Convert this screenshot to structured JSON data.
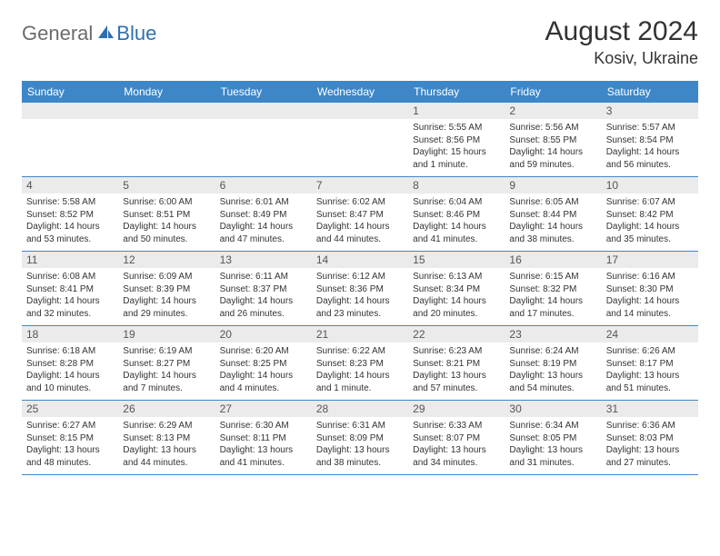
{
  "logo": {
    "text1": "General",
    "text2": "Blue"
  },
  "title": "August 2024",
  "location": "Kosiv, Ukraine",
  "colors": {
    "header_bg": "#3d87c9",
    "header_text": "#ffffff",
    "daynum_bg": "#ebebeb",
    "daynum_text": "#555555",
    "body_text": "#333333",
    "logo_gray": "#6b6b6b",
    "logo_blue": "#2f6fb0",
    "border": "#3d87c9"
  },
  "day_names": [
    "Sunday",
    "Monday",
    "Tuesday",
    "Wednesday",
    "Thursday",
    "Friday",
    "Saturday"
  ],
  "weeks": [
    [
      null,
      null,
      null,
      null,
      {
        "n": "1",
        "sr": "5:55 AM",
        "ss": "8:56 PM",
        "dl": "15 hours and 1 minute."
      },
      {
        "n": "2",
        "sr": "5:56 AM",
        "ss": "8:55 PM",
        "dl": "14 hours and 59 minutes."
      },
      {
        "n": "3",
        "sr": "5:57 AM",
        "ss": "8:54 PM",
        "dl": "14 hours and 56 minutes."
      }
    ],
    [
      {
        "n": "4",
        "sr": "5:58 AM",
        "ss": "8:52 PM",
        "dl": "14 hours and 53 minutes."
      },
      {
        "n": "5",
        "sr": "6:00 AM",
        "ss": "8:51 PM",
        "dl": "14 hours and 50 minutes."
      },
      {
        "n": "6",
        "sr": "6:01 AM",
        "ss": "8:49 PM",
        "dl": "14 hours and 47 minutes."
      },
      {
        "n": "7",
        "sr": "6:02 AM",
        "ss": "8:47 PM",
        "dl": "14 hours and 44 minutes."
      },
      {
        "n": "8",
        "sr": "6:04 AM",
        "ss": "8:46 PM",
        "dl": "14 hours and 41 minutes."
      },
      {
        "n": "9",
        "sr": "6:05 AM",
        "ss": "8:44 PM",
        "dl": "14 hours and 38 minutes."
      },
      {
        "n": "10",
        "sr": "6:07 AM",
        "ss": "8:42 PM",
        "dl": "14 hours and 35 minutes."
      }
    ],
    [
      {
        "n": "11",
        "sr": "6:08 AM",
        "ss": "8:41 PM",
        "dl": "14 hours and 32 minutes."
      },
      {
        "n": "12",
        "sr": "6:09 AM",
        "ss": "8:39 PM",
        "dl": "14 hours and 29 minutes."
      },
      {
        "n": "13",
        "sr": "6:11 AM",
        "ss": "8:37 PM",
        "dl": "14 hours and 26 minutes."
      },
      {
        "n": "14",
        "sr": "6:12 AM",
        "ss": "8:36 PM",
        "dl": "14 hours and 23 minutes."
      },
      {
        "n": "15",
        "sr": "6:13 AM",
        "ss": "8:34 PM",
        "dl": "14 hours and 20 minutes."
      },
      {
        "n": "16",
        "sr": "6:15 AM",
        "ss": "8:32 PM",
        "dl": "14 hours and 17 minutes."
      },
      {
        "n": "17",
        "sr": "6:16 AM",
        "ss": "8:30 PM",
        "dl": "14 hours and 14 minutes."
      }
    ],
    [
      {
        "n": "18",
        "sr": "6:18 AM",
        "ss": "8:28 PM",
        "dl": "14 hours and 10 minutes."
      },
      {
        "n": "19",
        "sr": "6:19 AM",
        "ss": "8:27 PM",
        "dl": "14 hours and 7 minutes."
      },
      {
        "n": "20",
        "sr": "6:20 AM",
        "ss": "8:25 PM",
        "dl": "14 hours and 4 minutes."
      },
      {
        "n": "21",
        "sr": "6:22 AM",
        "ss": "8:23 PM",
        "dl": "14 hours and 1 minute."
      },
      {
        "n": "22",
        "sr": "6:23 AM",
        "ss": "8:21 PM",
        "dl": "13 hours and 57 minutes."
      },
      {
        "n": "23",
        "sr": "6:24 AM",
        "ss": "8:19 PM",
        "dl": "13 hours and 54 minutes."
      },
      {
        "n": "24",
        "sr": "6:26 AM",
        "ss": "8:17 PM",
        "dl": "13 hours and 51 minutes."
      }
    ],
    [
      {
        "n": "25",
        "sr": "6:27 AM",
        "ss": "8:15 PM",
        "dl": "13 hours and 48 minutes."
      },
      {
        "n": "26",
        "sr": "6:29 AM",
        "ss": "8:13 PM",
        "dl": "13 hours and 44 minutes."
      },
      {
        "n": "27",
        "sr": "6:30 AM",
        "ss": "8:11 PM",
        "dl": "13 hours and 41 minutes."
      },
      {
        "n": "28",
        "sr": "6:31 AM",
        "ss": "8:09 PM",
        "dl": "13 hours and 38 minutes."
      },
      {
        "n": "29",
        "sr": "6:33 AM",
        "ss": "8:07 PM",
        "dl": "13 hours and 34 minutes."
      },
      {
        "n": "30",
        "sr": "6:34 AM",
        "ss": "8:05 PM",
        "dl": "13 hours and 31 minutes."
      },
      {
        "n": "31",
        "sr": "6:36 AM",
        "ss": "8:03 PM",
        "dl": "13 hours and 27 minutes."
      }
    ]
  ],
  "labels": {
    "sunrise": "Sunrise:",
    "sunset": "Sunset:",
    "daylight": "Daylight:"
  }
}
